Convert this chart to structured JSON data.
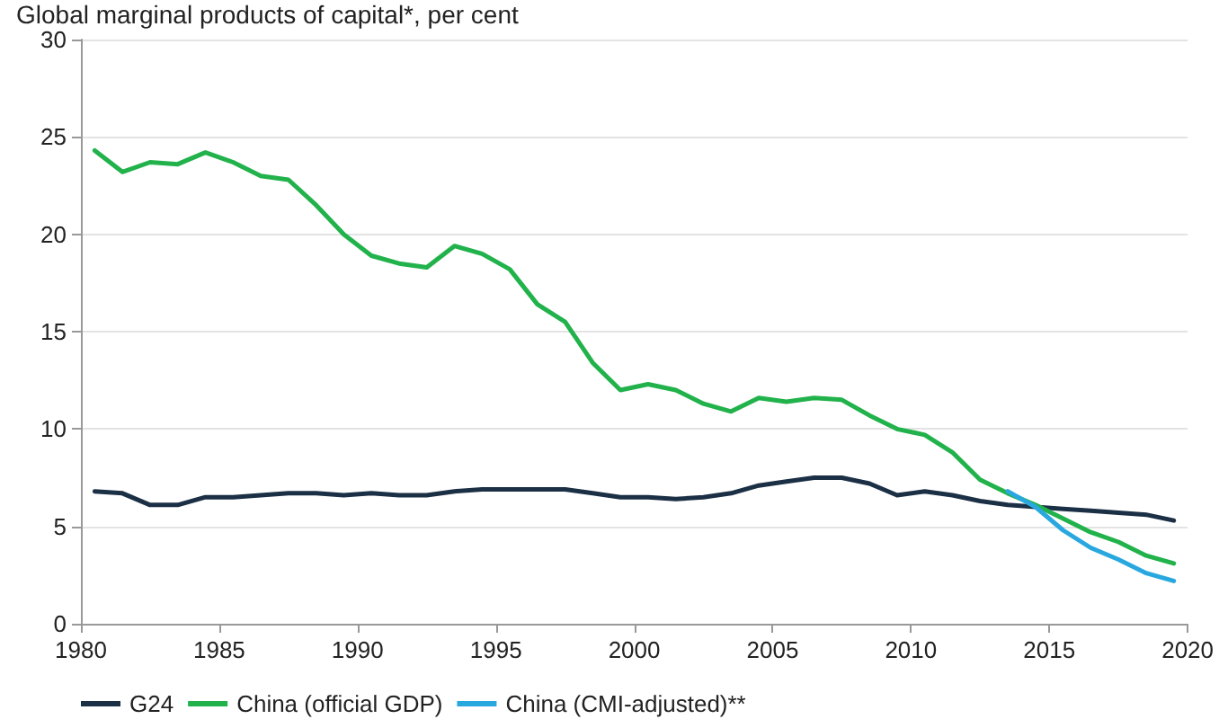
{
  "chart_data": {
    "type": "line",
    "title": "Global marginal products of capital*, per cent",
    "x": [
      1980.5,
      1981.5,
      1982.5,
      1983.5,
      1984.5,
      1985.5,
      1986.5,
      1987.5,
      1988.5,
      1989.5,
      1990.5,
      1991.5,
      1992.5,
      1993.5,
      1994.5,
      1995.5,
      1996.5,
      1997.5,
      1998.5,
      1999.5,
      2000.5,
      2001.5,
      2002.5,
      2003.5,
      2004.5,
      2005.5,
      2006.5,
      2007.5,
      2008.5,
      2009.5,
      2010.5,
      2011.5,
      2012.5,
      2013.5,
      2014.5,
      2015.5,
      2016.5,
      2017.5,
      2018.5,
      2019.5
    ],
    "series": [
      {
        "name": "G24",
        "color": "#1b2f45",
        "values": [
          6.8,
          6.7,
          6.1,
          6.1,
          6.5,
          6.5,
          6.6,
          6.7,
          6.7,
          6.6,
          6.7,
          6.6,
          6.6,
          6.8,
          6.9,
          6.9,
          6.9,
          6.9,
          6.7,
          6.5,
          6.5,
          6.4,
          6.5,
          6.7,
          7.1,
          7.3,
          7.5,
          7.5,
          7.2,
          6.6,
          6.8,
          6.6,
          6.3,
          6.1,
          6.0,
          5.9,
          5.8,
          5.7,
          5.6,
          5.3
        ]
      },
      {
        "name": "China (official GDP)",
        "color": "#21b24b",
        "values": [
          24.3,
          23.2,
          23.7,
          23.6,
          24.2,
          23.7,
          23.0,
          22.8,
          21.5,
          20.0,
          18.9,
          18.5,
          18.3,
          19.4,
          19.0,
          18.2,
          16.4,
          15.5,
          13.4,
          12.0,
          12.3,
          12.0,
          11.3,
          10.9,
          11.6,
          11.4,
          11.6,
          11.5,
          10.7,
          10.0,
          9.7,
          8.8,
          7.4,
          6.7,
          6.1,
          5.4,
          4.7,
          4.2,
          3.5,
          3.1
        ]
      },
      {
        "name": "China (CMI-adjusted)**",
        "color": "#29a8df",
        "values": [
          null,
          null,
          null,
          null,
          null,
          null,
          null,
          null,
          null,
          null,
          null,
          null,
          null,
          null,
          null,
          null,
          null,
          null,
          null,
          null,
          null,
          null,
          null,
          null,
          null,
          null,
          null,
          null,
          null,
          null,
          null,
          null,
          null,
          6.8,
          6.0,
          4.8,
          3.9,
          3.3,
          2.6,
          2.2
        ]
      }
    ],
    "xlim": [
      1980,
      2020
    ],
    "xticks": [
      1980,
      1985,
      1990,
      1995,
      2000,
      2005,
      2010,
      2015,
      2020
    ],
    "ylim": [
      0,
      30
    ],
    "yticks": [
      0,
      5,
      10,
      15,
      20,
      25,
      30
    ],
    "grid": "y",
    "legend": "bottom left",
    "marker": "none",
    "line_style": "solid"
  }
}
